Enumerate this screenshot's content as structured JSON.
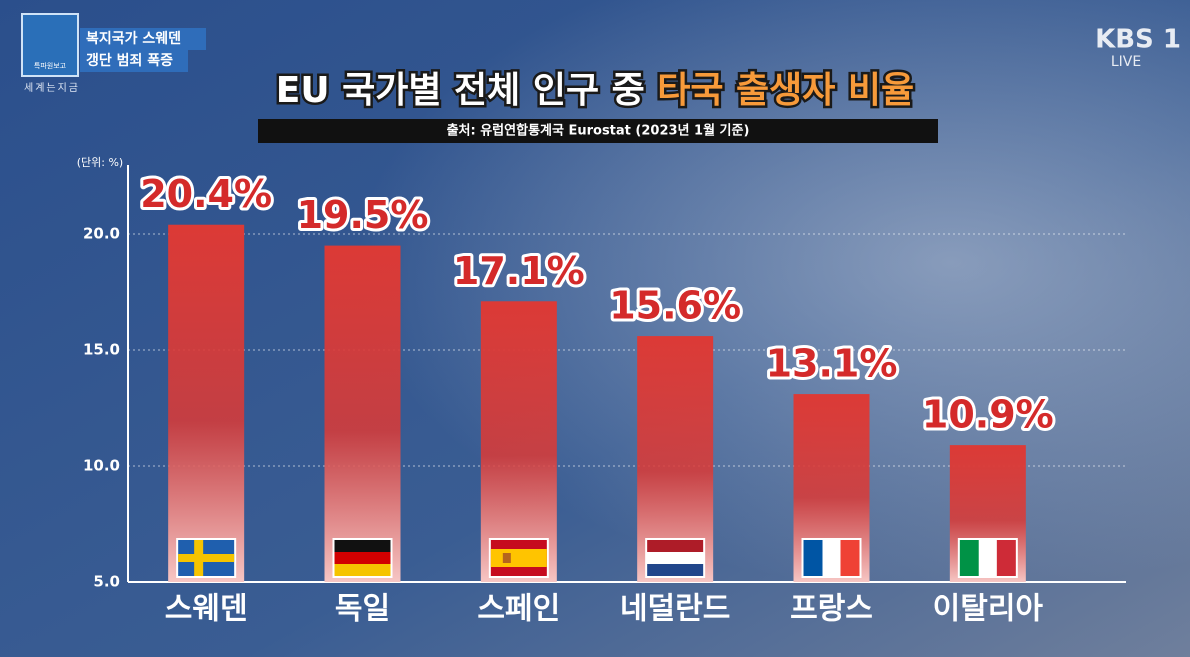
{
  "chart_data": {
    "type": "bar",
    "title": "EU 국가별 전체 인구 중",
    "title_highlight": "타국 출생자 비율",
    "subtitle": "출처: 유럽연합통계국 Eurostat (2023년 1월 기준)",
    "unit_label": "(단위: %)",
    "categories": [
      "스웨덴",
      "독일",
      "스페인",
      "네덜란드",
      "프랑스",
      "이탈리아"
    ],
    "values": [
      20.4,
      19.5,
      17.1,
      15.6,
      13.1,
      10.9
    ],
    "value_labels": [
      "20.4%",
      "19.5%",
      "17.1%",
      "15.6%",
      "13.1%",
      "10.9%"
    ],
    "color": "#dc3a36",
    "ylim": [
      5,
      23
    ],
    "yticks": [
      {
        "value": 5,
        "label": "5.0"
      },
      {
        "value": 10,
        "label": "10.0"
      },
      {
        "value": 15,
        "label": "15.0"
      },
      {
        "value": 20,
        "label": "20.0"
      }
    ],
    "grid": true
  },
  "overlay": {
    "program_logo": "특파원보고",
    "program_name": "세계는지금",
    "headline": [
      "복지국가 스웨덴",
      "갱단 범죄 폭증"
    ],
    "channel": "KBS 1",
    "live": "LIVE"
  }
}
